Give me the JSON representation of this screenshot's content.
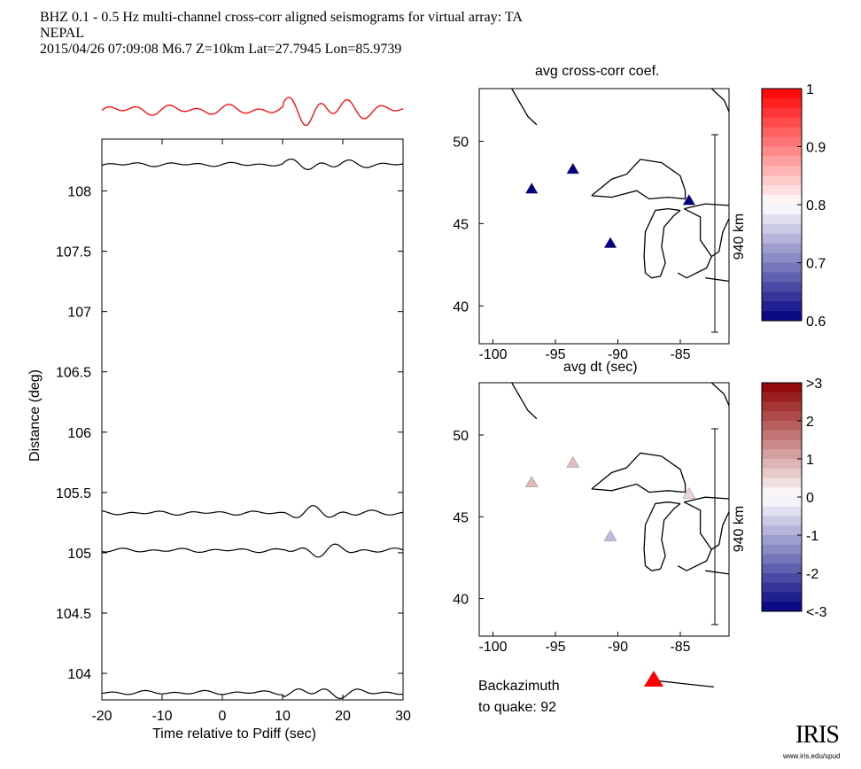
{
  "header": {
    "line1": "BHZ  0.1 - 0.5 Hz  multi-channel cross-corr aligned seismograms for virtual array: TA",
    "line2": "NEPAL",
    "line3": "2015/04/26  07:09:08  M6.7  Z=10km Lat=27.7945 Lon=85.9739"
  },
  "chart_data": [
    {
      "type": "line",
      "xlabel": "Time relative to Pdiff (sec)",
      "ylabel": "Distance (deg)",
      "xlim": [
        -20,
        30
      ],
      "ylim": [
        103.78,
        108.43
      ],
      "xticks": [
        "-20",
        "-10",
        "0",
        "10",
        "20",
        "30"
      ],
      "yticks": [
        "104",
        "104.5",
        "105",
        "105.5",
        "106",
        "106.5",
        "107",
        "107.5",
        "108"
      ],
      "trace_distances": [
        108.22,
        105.33,
        105.02,
        103.84
      ],
      "stack_color": "#ff0000"
    },
    {
      "type": "scatter",
      "title": "avg cross-corr coef.",
      "xlim": [
        -101.1,
        -81.1
      ],
      "ylim": [
        37.7,
        53.2
      ],
      "xticks": [
        "-100",
        "-95",
        "-90",
        "-85"
      ],
      "yticks": [
        "40",
        "45",
        "50"
      ],
      "scale_label": "940 km",
      "stations": [
        {
          "lon": -96.9,
          "lat": 47.1,
          "value": 0.6
        },
        {
          "lon": -93.6,
          "lat": 48.3,
          "value": 0.6
        },
        {
          "lon": -90.6,
          "lat": 43.8,
          "value": 0.6
        },
        {
          "lon": -84.3,
          "lat": 46.4,
          "value": 0.6
        }
      ],
      "colorbar": {
        "range": [
          0.6,
          1
        ],
        "ticks": [
          "0.6",
          "0.7",
          "0.8",
          "0.9",
          "1"
        ]
      }
    },
    {
      "type": "scatter",
      "title": "avg dt (sec)",
      "xlim": [
        -101.1,
        -81.1
      ],
      "ylim": [
        37.7,
        53.2
      ],
      "xticks": [
        "-100",
        "-95",
        "-90",
        "-85"
      ],
      "yticks": [
        "40",
        "45",
        "50"
      ],
      "scale_label": "940 km",
      "stations": [
        {
          "lon": -96.9,
          "lat": 47.1,
          "value": 0.8
        },
        {
          "lon": -93.6,
          "lat": 48.3,
          "value": 0.8
        },
        {
          "lon": -90.6,
          "lat": 43.8,
          "value": -0.8
        },
        {
          "lon": -84.3,
          "lat": 46.4,
          "value": 0.5
        }
      ],
      "colorbar": {
        "range": [
          -3,
          3
        ],
        "ticks": [
          "<-3",
          "-2",
          "-1",
          "0",
          "1",
          "2",
          ">3"
        ]
      }
    }
  ],
  "backazimuth": {
    "line1": "Backazimuth",
    "line2": "to quake:  92",
    "value": 92
  },
  "logo": {
    "text": "IRIS",
    "url": "www.iris.edu/spud"
  }
}
